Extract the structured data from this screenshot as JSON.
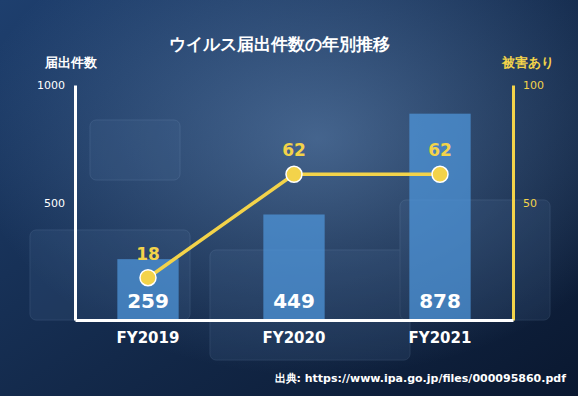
{
  "chart_data": {
    "type": "bar",
    "title": "ウイルス届出件数の年別推移",
    "source": "出典: https://www.ipa.go.jp/files/000095860.pdf",
    "categories": [
      "FY2019",
      "FY2020",
      "FY2021"
    ],
    "series": [
      {
        "name": "届出件数",
        "type": "bar",
        "color": "#4f97dc",
        "values": [
          259,
          449,
          878
        ],
        "data_labels": true
      },
      {
        "name": "被害あり",
        "type": "line",
        "axis": "y2",
        "color": "#f3d34a",
        "marker": "circle",
        "values": [
          18,
          62,
          62
        ],
        "data_labels": true
      }
    ],
    "ylim": [
      0,
      1000
    ],
    "yticks": [
      500,
      1000
    ],
    "y2lim": [
      0,
      100
    ],
    "y2ticks": [
      50,
      100
    ]
  }
}
